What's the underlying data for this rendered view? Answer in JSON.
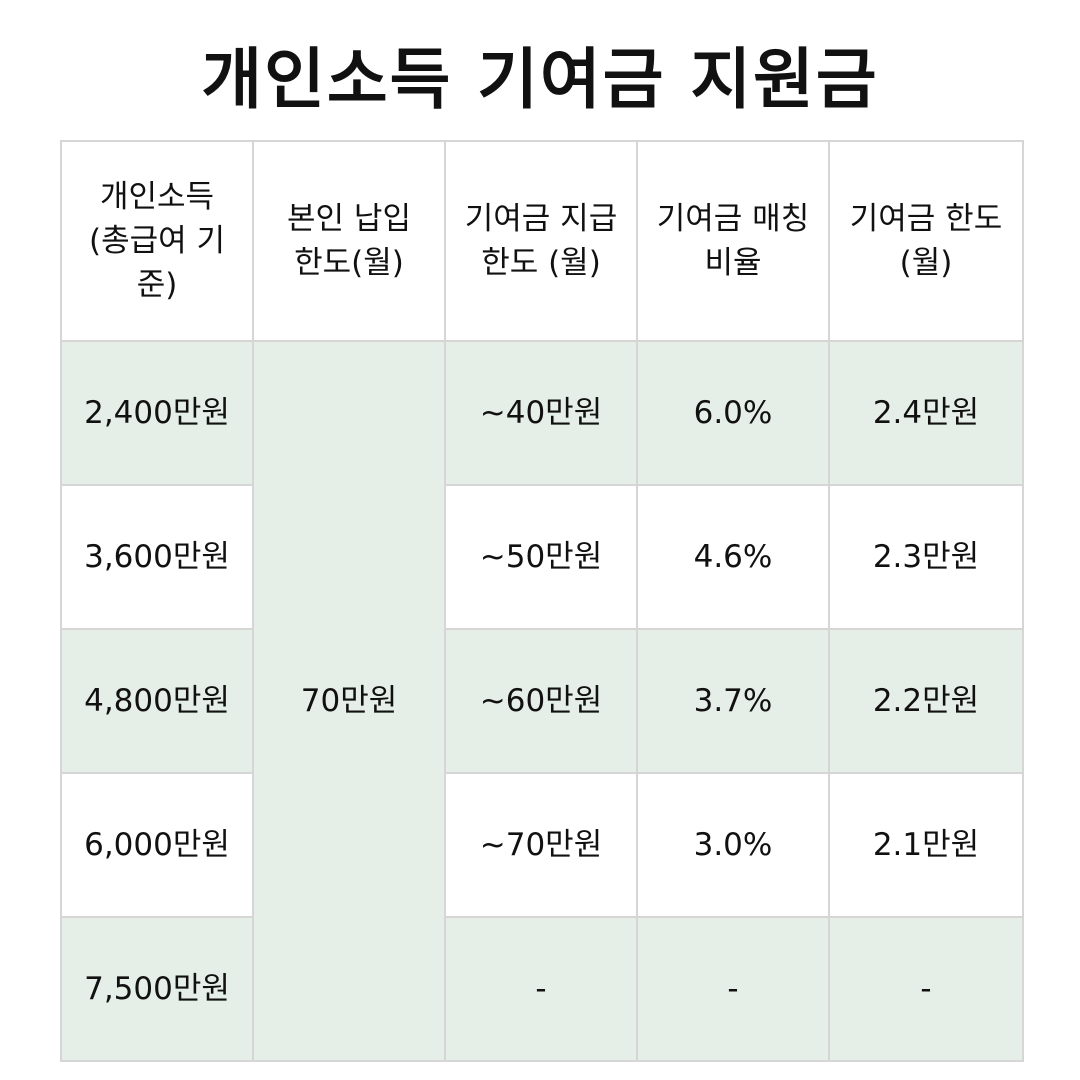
{
  "title": "개인소득 기여금 지원금",
  "colors": {
    "shaded_row": "#e6efe7",
    "plain_row": "#ffffff",
    "border": "#d6d6d6",
    "text": "#111111"
  },
  "table": {
    "headers": [
      "개인소득 (총급여 기준)",
      "본인 납입 한도(월)",
      "기여금 지급한도 (월)",
      "기여금 매칭비율",
      "기여금 한도(월)"
    ],
    "payment_limit": "70만원",
    "rows": [
      {
        "income": "2,400만원",
        "support_limit": "~40만원",
        "matching_rate": "6.0%",
        "contribution_limit": "2.4만원"
      },
      {
        "income": "3,600만원",
        "support_limit": "~50만원",
        "matching_rate": "4.6%",
        "contribution_limit": "2.3만원"
      },
      {
        "income": "4,800만원",
        "support_limit": "~60만원",
        "matching_rate": "3.7%",
        "contribution_limit": "2.2만원"
      },
      {
        "income": "6,000만원",
        "support_limit": "~70만원",
        "matching_rate": "3.0%",
        "contribution_limit": "2.1만원"
      },
      {
        "income": "7,500만원",
        "support_limit": "-",
        "matching_rate": "-",
        "contribution_limit": "-"
      }
    ]
  }
}
